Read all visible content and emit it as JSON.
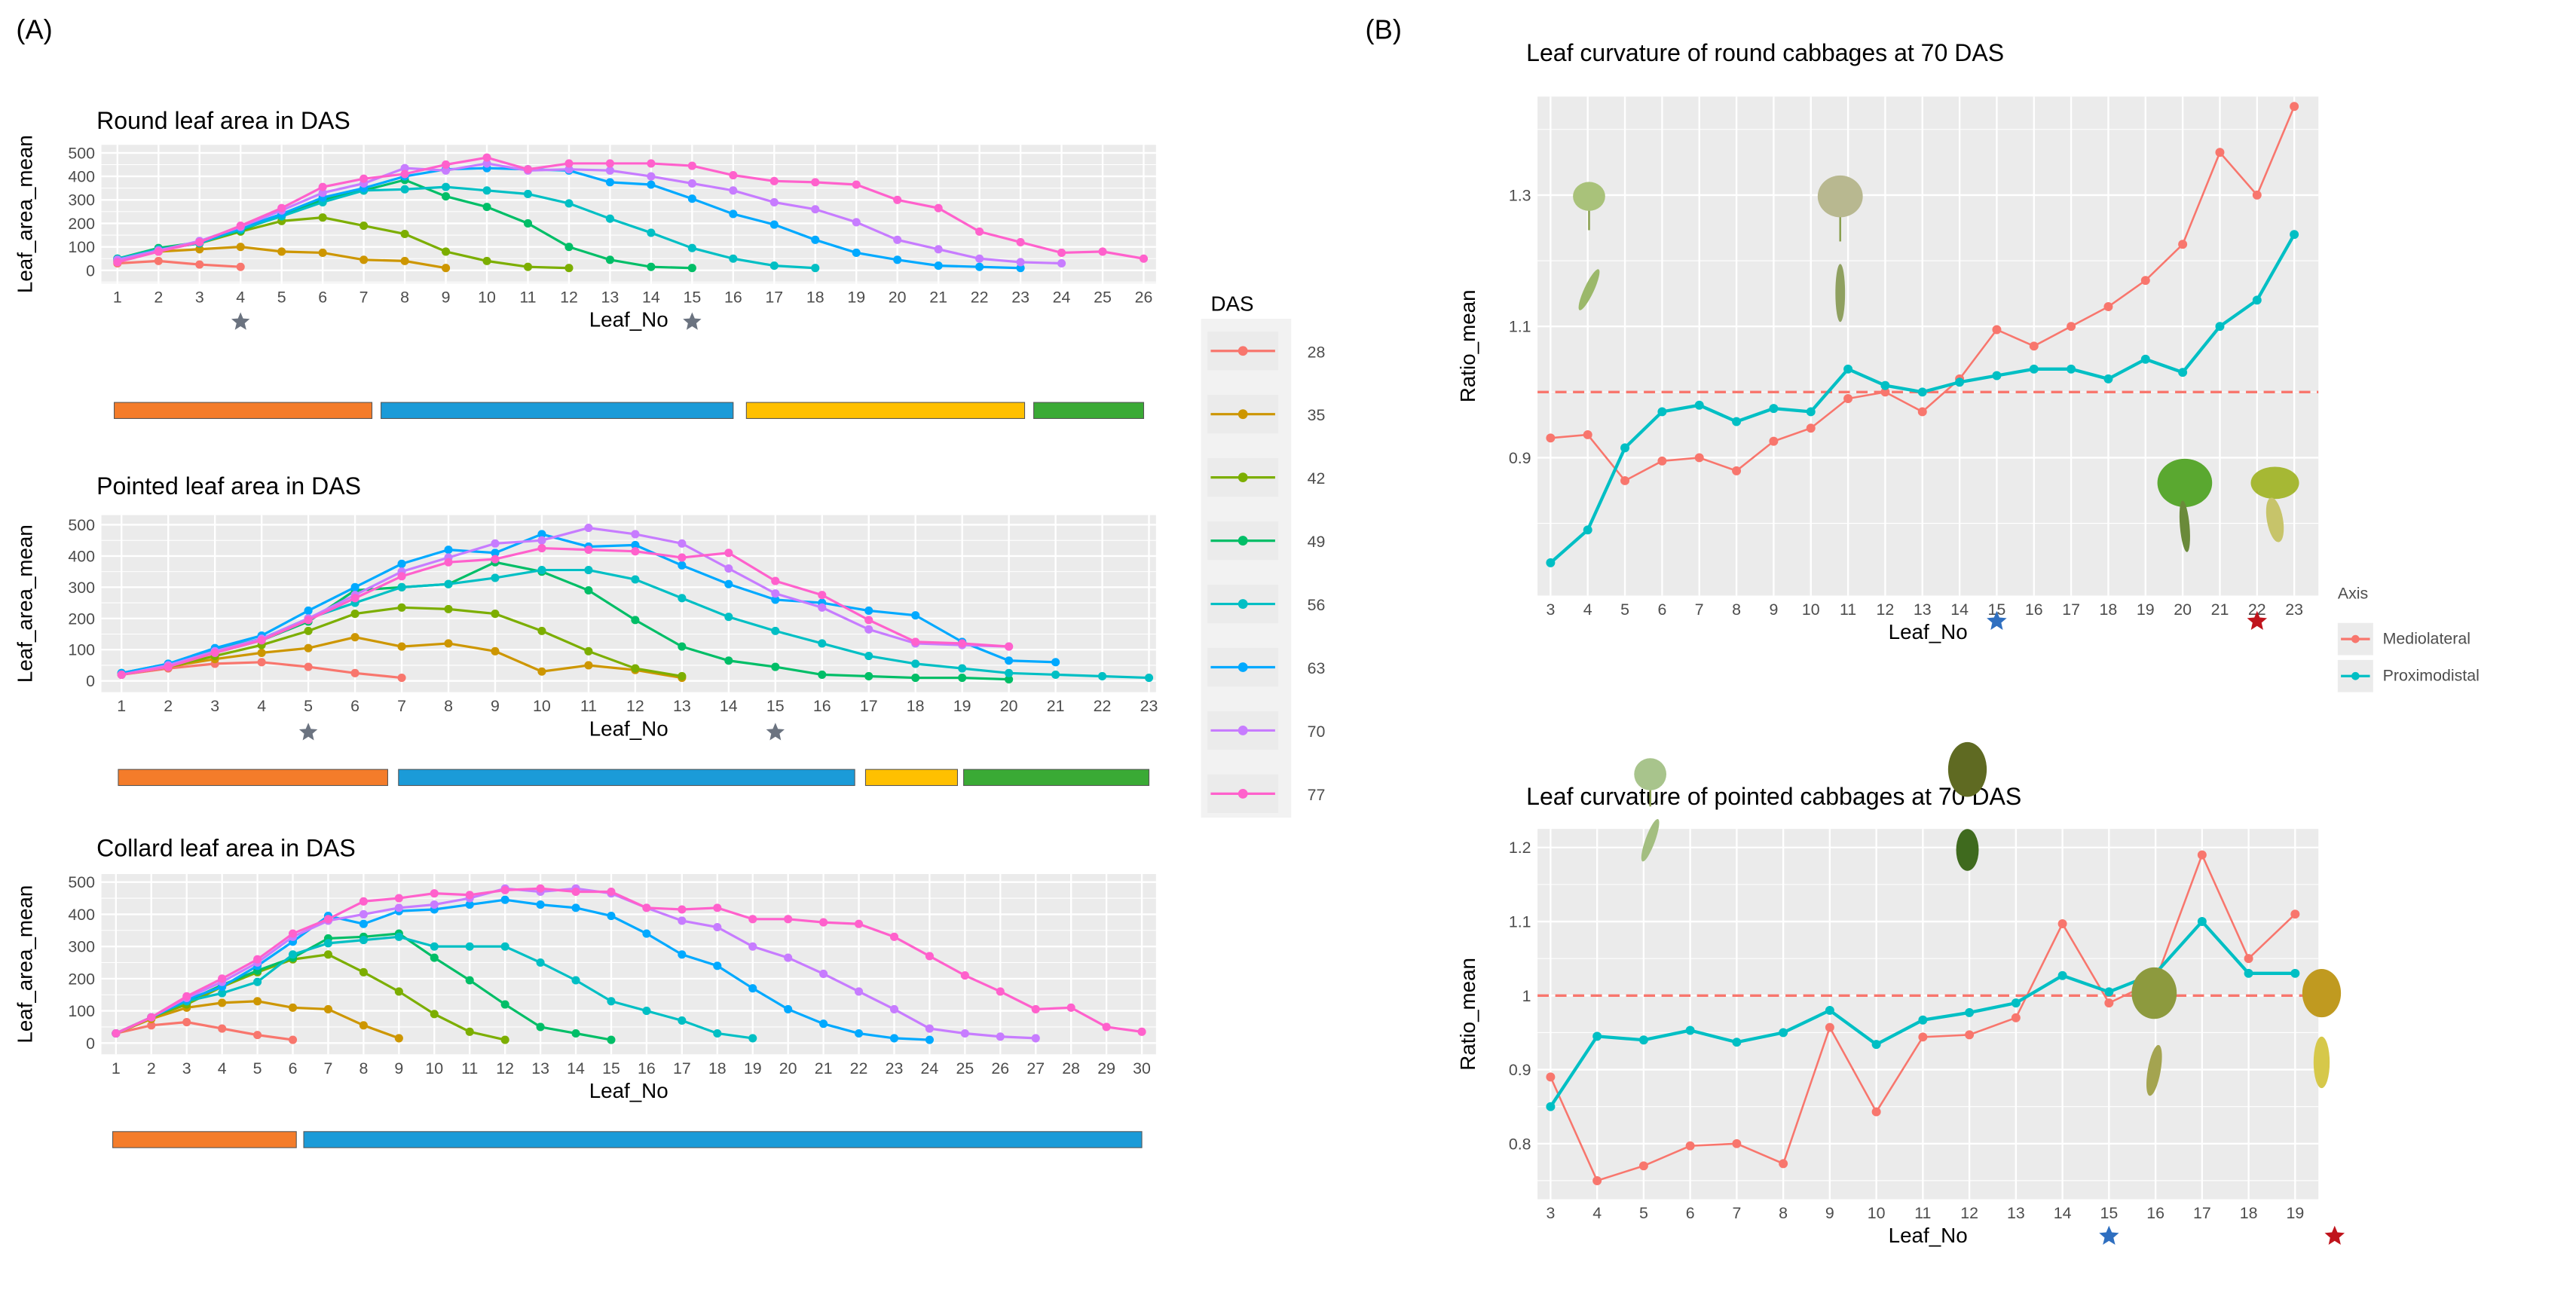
{
  "panel_labels": {
    "a": "(A)",
    "b": "(B)"
  },
  "legend_das": {
    "title": "DAS",
    "items": [
      "28",
      "35",
      "42",
      "49",
      "56",
      "63",
      "70",
      "77"
    ],
    "colors": [
      "#F8766D",
      "#CD9600",
      "#7CAE00",
      "#00BE67",
      "#00BFC4",
      "#00A9FF",
      "#C77CFF",
      "#FF61CC"
    ]
  },
  "legend_axis": {
    "title": "Axis",
    "items": [
      "Mediolateral",
      "Proximodistal"
    ],
    "colors": [
      "#F8766D",
      "#00BFC4"
    ]
  },
  "stage_colors": {
    "orange": "#F47C2A",
    "blue": "#1B9BD8",
    "yellow": "#FFC000",
    "green": "#3AAA35"
  },
  "chart_data": [
    {
      "type": "line",
      "title": "Round leaf area in DAS",
      "xlabel": "Leaf_No",
      "ylabel": "Leaf_area_mean",
      "xticks": [
        1,
        2,
        3,
        4,
        5,
        6,
        7,
        8,
        9,
        10,
        11,
        12,
        13,
        14,
        15,
        16,
        17,
        18,
        19,
        20,
        21,
        22,
        23,
        24,
        25,
        26
      ],
      "yticks": [
        0,
        100,
        200,
        300,
        400,
        500
      ],
      "ylim": [
        0,
        500
      ],
      "grid": true,
      "star_x": [
        4,
        15
      ],
      "star_color": "#6b7380",
      "stage_bars": [
        {
          "from": 1,
          "to": 7.2,
          "color": "orange"
        },
        {
          "from": 7.5,
          "to": 16.0,
          "color": "blue"
        },
        {
          "from": 16.4,
          "to": 23.1,
          "color": "yellow"
        },
        {
          "from": 23.4,
          "to": 26,
          "color": "green"
        }
      ],
      "series": [
        {
          "name": "28",
          "values": [
            30,
            40,
            25,
            15
          ]
        },
        {
          "name": "35",
          "values": [
            50,
            80,
            90,
            100,
            80,
            75,
            45,
            40,
            10
          ]
        },
        {
          "name": "42",
          "values": [
            40,
            90,
            115,
            165,
            210,
            225,
            190,
            155,
            80,
            40,
            15,
            10
          ]
        },
        {
          "name": "49",
          "values": [
            50,
            95,
            120,
            170,
            235,
            300,
            340,
            385,
            315,
            270,
            200,
            100,
            45,
            15,
            10
          ]
        },
        {
          "name": "56",
          "values": [
            50,
            90,
            115,
            175,
            230,
            290,
            340,
            345,
            355,
            340,
            325,
            285,
            220,
            160,
            95,
            50,
            20,
            10
          ]
        },
        {
          "name": "63",
          "values": [
            45,
            85,
            120,
            180,
            240,
            310,
            350,
            400,
            430,
            435,
            430,
            425,
            375,
            365,
            305,
            240,
            195,
            130,
            75,
            45,
            20,
            15,
            10
          ]
        },
        {
          "name": "70",
          "values": [
            45,
            85,
            125,
            185,
            255,
            330,
            370,
            435,
            425,
            455,
            425,
            430,
            425,
            400,
            370,
            340,
            290,
            260,
            205,
            130,
            90,
            50,
            35,
            30
          ]
        },
        {
          "name": "77",
          "values": [
            35,
            80,
            120,
            190,
            265,
            355,
            390,
            410,
            450,
            480,
            430,
            455,
            455,
            455,
            445,
            405,
            380,
            375,
            365,
            300,
            265,
            165,
            120,
            75,
            80,
            50
          ]
        }
      ]
    },
    {
      "type": "line",
      "title": "Pointed leaf area in DAS",
      "xlabel": "Leaf_No",
      "ylabel": "Leaf_area_mean",
      "xticks": [
        1,
        2,
        3,
        4,
        5,
        6,
        7,
        8,
        9,
        10,
        11,
        12,
        13,
        14,
        15,
        16,
        17,
        18,
        19,
        20,
        21,
        22,
        23
      ],
      "yticks": [
        0,
        100,
        200,
        300,
        400,
        500
      ],
      "ylim": [
        0,
        500
      ],
      "grid": true,
      "star_x": [
        5,
        15
      ],
      "star_color": "#6b7380",
      "stage_bars": [
        {
          "from": 1,
          "to": 6.7,
          "color": "orange"
        },
        {
          "from": 7.0,
          "to": 16.7,
          "color": "blue"
        },
        {
          "from": 17.0,
          "to": 18.9,
          "color": "yellow"
        },
        {
          "from": 19.1,
          "to": 23,
          "color": "green"
        }
      ],
      "series": [
        {
          "name": "28",
          "values": [
            20,
            40,
            55,
            60,
            45,
            25,
            10
          ]
        },
        {
          "name": "35",
          "values": [
            20,
            45,
            70,
            90,
            105,
            140,
            110,
            120,
            95,
            30,
            50,
            35,
            10
          ]
        },
        {
          "name": "42",
          "values": [
            20,
            45,
            80,
            115,
            160,
            215,
            235,
            230,
            215,
            160,
            95,
            40,
            15
          ]
        },
        {
          "name": "49",
          "values": [
            25,
            50,
            90,
            130,
            190,
            290,
            300,
            310,
            380,
            350,
            290,
            195,
            110,
            65,
            45,
            20,
            15,
            10,
            10,
            5
          ]
        },
        {
          "name": "56",
          "values": [
            25,
            55,
            100,
            135,
            200,
            250,
            300,
            310,
            330,
            355,
            355,
            325,
            265,
            205,
            160,
            120,
            80,
            55,
            40,
            25,
            20,
            15,
            10
          ]
        },
        {
          "name": "63",
          "values": [
            25,
            55,
            105,
            145,
            225,
            300,
            375,
            420,
            410,
            470,
            430,
            435,
            370,
            310,
            260,
            250,
            225,
            210,
            125,
            65,
            60
          ]
        },
        {
          "name": "70",
          "values": [
            20,
            50,
            95,
            135,
            200,
            275,
            350,
            395,
            440,
            450,
            490,
            470,
            440,
            360,
            280,
            235,
            165,
            120,
            115,
            110
          ]
        },
        {
          "name": "77",
          "values": [
            20,
            45,
            90,
            130,
            195,
            265,
            335,
            380,
            390,
            425,
            420,
            415,
            395,
            410,
            320,
            275,
            195,
            125,
            120,
            110
          ]
        }
      ]
    },
    {
      "type": "line",
      "title": "Collard leaf area in DAS",
      "xlabel": "Leaf_No",
      "ylabel": "Leaf_area_mean",
      "xticks": [
        1,
        2,
        3,
        4,
        5,
        6,
        7,
        8,
        9,
        10,
        11,
        12,
        13,
        14,
        15,
        16,
        17,
        18,
        19,
        20,
        21,
        22,
        23,
        24,
        25,
        26,
        27,
        28,
        29,
        30
      ],
      "yticks": [
        0,
        100,
        200,
        300,
        400,
        500
      ],
      "ylim": [
        0,
        500
      ],
      "grid": true,
      "star_x": [],
      "star_color": "#6b7380",
      "stage_bars": [
        {
          "from": 1,
          "to": 6.1,
          "color": "orange"
        },
        {
          "from": 6.4,
          "to": 30,
          "color": "blue"
        }
      ],
      "series": [
        {
          "name": "28",
          "values": [
            30,
            55,
            65,
            45,
            25,
            10
          ]
        },
        {
          "name": "35",
          "values": [
            30,
            75,
            110,
            125,
            130,
            110,
            105,
            55,
            15
          ]
        },
        {
          "name": "42",
          "values": [
            30,
            80,
            120,
            175,
            220,
            260,
            275,
            220,
            160,
            90,
            35,
            10
          ]
        },
        {
          "name": "49",
          "values": [
            30,
            80,
            130,
            180,
            225,
            265,
            325,
            330,
            340,
            265,
            195,
            120,
            50,
            30,
            10
          ]
        },
        {
          "name": "56",
          "values": [
            30,
            80,
            130,
            155,
            190,
            275,
            310,
            320,
            330,
            300,
            300,
            300,
            250,
            195,
            130,
            100,
            70,
            30,
            15
          ]
        },
        {
          "name": "63",
          "values": [
            30,
            80,
            135,
            175,
            240,
            315,
            395,
            370,
            410,
            415,
            430,
            445,
            430,
            420,
            395,
            340,
            275,
            240,
            170,
            105,
            60,
            30,
            15,
            10
          ]
        },
        {
          "name": "70",
          "values": [
            30,
            80,
            140,
            190,
            250,
            330,
            380,
            400,
            420,
            430,
            450,
            480,
            470,
            480,
            465,
            420,
            380,
            360,
            300,
            265,
            215,
            160,
            105,
            45,
            30,
            20,
            15
          ]
        },
        {
          "name": "77",
          "values": [
            30,
            80,
            145,
            200,
            260,
            340,
            385,
            440,
            450,
            465,
            460,
            475,
            480,
            470,
            470,
            420,
            415,
            420,
            385,
            385,
            375,
            370,
            330,
            270,
            210,
            160,
            105,
            110,
            50,
            35
          ]
        }
      ]
    },
    {
      "type": "line",
      "title": "Leaf curvature of round cabbages at 70 DAS",
      "xlabel": "Leaf_No",
      "ylabel": "Ratio_mean",
      "xticks": [
        3,
        4,
        5,
        6,
        7,
        8,
        9,
        10,
        11,
        12,
        13,
        14,
        15,
        16,
        17,
        18,
        19,
        20,
        21,
        22,
        23
      ],
      "yticks": [
        0.9,
        1.1,
        1.3
      ],
      "ylim": [
        0.69,
        1.45
      ],
      "grid": true,
      "reference_line": 1.0,
      "stars": [
        {
          "x": 15,
          "color": "#2f6fc0"
        },
        {
          "x": 22,
          "color": "#c0141c"
        }
      ],
      "series": [
        {
          "name": "Mediolateral",
          "values": [
            0.93,
            0.935,
            0.865,
            0.895,
            0.9,
            0.88,
            0.925,
            0.945,
            0.99,
            1.0,
            0.97,
            1.02,
            1.095,
            1.07,
            1.1,
            1.13,
            1.17,
            1.225,
            1.365,
            1.3,
            1.435
          ]
        },
        {
          "name": "Proximodistal",
          "values": [
            0.74,
            0.79,
            0.915,
            0.97,
            0.98,
            0.955,
            0.975,
            0.97,
            1.035,
            1.01,
            1.0,
            1.015,
            1.025,
            1.035,
            1.035,
            1.02,
            1.05,
            1.03,
            1.1,
            1.14,
            1.24
          ]
        }
      ]
    },
    {
      "type": "line",
      "title": "Leaf curvature of pointed cabbages at 70 DAS",
      "xlabel": "Leaf_No",
      "ylabel": "Ratio_mean",
      "xticks": [
        3,
        4,
        5,
        6,
        7,
        8,
        9,
        10,
        11,
        12,
        13,
        14,
        15,
        16,
        17,
        18,
        19
      ],
      "yticks": [
        0.8,
        0.9,
        1.0,
        1.1,
        1.2
      ],
      "ylim": [
        0.725,
        1.225
      ],
      "grid": true,
      "reference_line": 1.0,
      "stars": [
        {
          "x": 15,
          "color": "#2f6fc0"
        },
        {
          "x": 19.85,
          "color": "#c0141c"
        }
      ],
      "series": [
        {
          "name": "Mediolateral",
          "values": [
            0.89,
            0.75,
            0.77,
            0.797,
            0.8,
            0.773,
            0.957,
            0.843,
            0.944,
            0.947,
            0.97,
            1.097,
            0.99,
            1.02,
            1.19,
            1.05,
            1.11
          ]
        },
        {
          "name": "Proximodistal",
          "values": [
            0.85,
            0.945,
            0.94,
            0.953,
            0.937,
            0.95,
            0.98,
            0.934,
            0.967,
            0.977,
            0.99,
            1.027,
            1.005,
            1.03,
            1.1,
            1.03,
            1.03
          ]
        }
      ]
    }
  ]
}
